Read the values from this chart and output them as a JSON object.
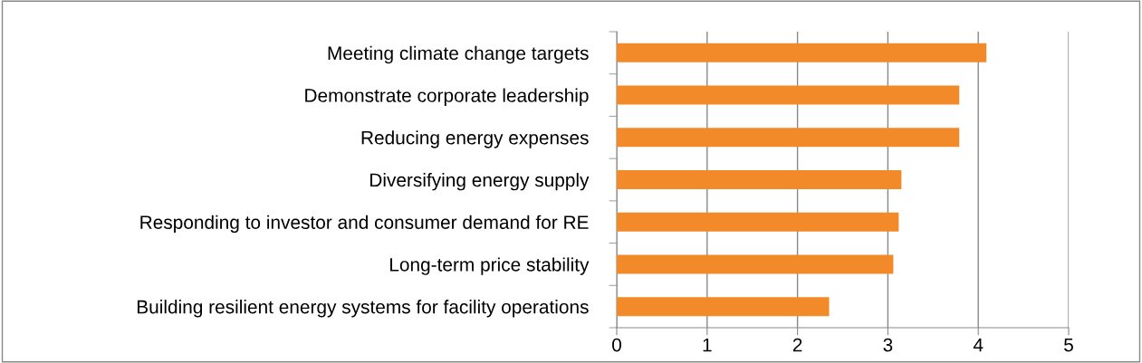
{
  "chart_data": {
    "type": "bar",
    "orientation": "horizontal",
    "categories": [
      "Meeting climate change targets",
      "Demonstrate corporate leadership",
      "Reducing energy expenses",
      "Diversifying energy supply",
      "Responding to investor and consumer demand for RE",
      "Long-term price stability",
      "Building resilient energy systems for facility operations"
    ],
    "values": [
      4.09,
      3.79,
      3.79,
      3.15,
      3.12,
      3.06,
      2.35
    ],
    "color": "#f28a2a",
    "xlim": [
      0,
      5
    ],
    "xticks": [
      0,
      1,
      2,
      3,
      4,
      5
    ],
    "grid": "x",
    "legend": false
  }
}
